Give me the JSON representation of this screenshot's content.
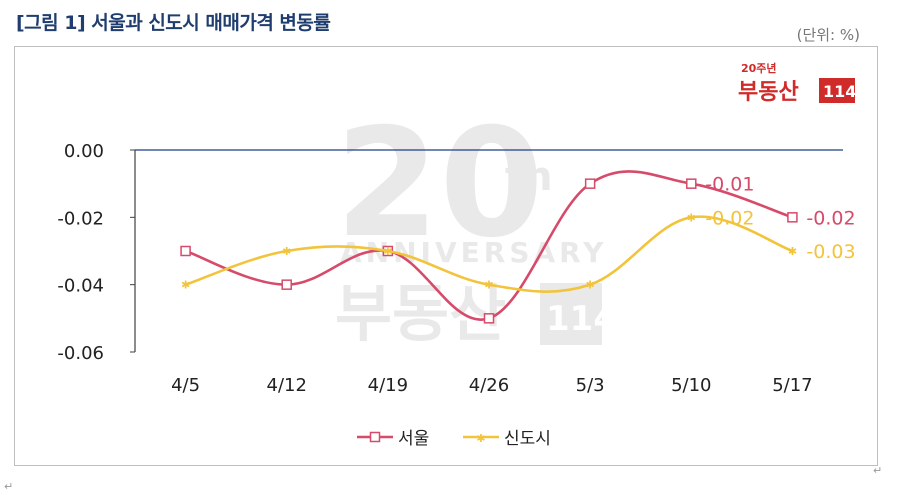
{
  "header": {
    "title": "[그림 1] 서울과 신도시 매매가격 변동률",
    "unit": "(단위: %)"
  },
  "logo": {
    "small_brand": "부동산",
    "small_sup": "20주년",
    "small_num": "114"
  },
  "watermark": {
    "big": "20",
    "sup": "th",
    "word": "ANNIVERSARY",
    "brand": "부동산",
    "num": "114"
  },
  "stray_marks": {
    "right": "↵",
    "left": "↵"
  },
  "colors": {
    "seoul": "#d64a6a",
    "newtown": "#f2c43c",
    "axis": "#404040",
    "grid": "#1f3d8a"
  },
  "chart_data": {
    "type": "line",
    "categories": [
      "4/5",
      "4/12",
      "4/19",
      "4/26",
      "5/3",
      "5/10",
      "5/17"
    ],
    "ylim": [
      -0.06,
      0.0
    ],
    "yticks": [
      "0.00",
      "-0.02",
      "-0.04",
      "-0.06"
    ],
    "ytick_values": [
      0.0,
      -0.02,
      -0.04,
      -0.06
    ],
    "grid": false,
    "legend_position": "bottom",
    "series": [
      {
        "name": "서울",
        "values": [
          -0.03,
          -0.04,
          -0.03,
          -0.05,
          -0.01,
          -0.01,
          -0.02
        ],
        "labels": [
          null,
          null,
          null,
          null,
          null,
          "-0.01",
          "-0.02"
        ]
      },
      {
        "name": "신도시",
        "values": [
          -0.04,
          -0.03,
          -0.03,
          -0.04,
          -0.04,
          -0.02,
          -0.03
        ],
        "labels": [
          null,
          null,
          null,
          null,
          null,
          "-0.02",
          "-0.03"
        ]
      }
    ]
  }
}
